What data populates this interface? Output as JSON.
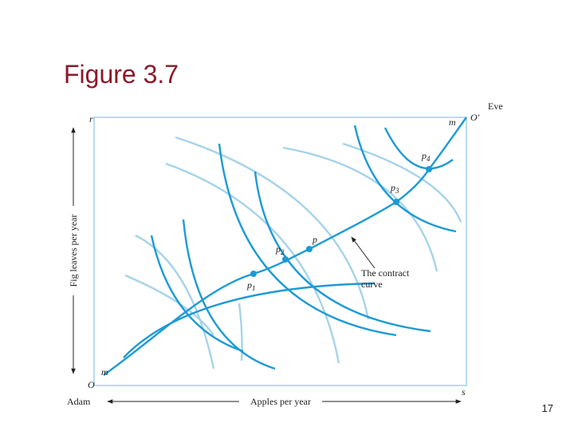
{
  "title": "Figure 3.7",
  "box": {
    "top_left": "r",
    "top_right_label": "m",
    "top_right_origin": "O′",
    "owner_top": "Eve",
    "bottom_left_origin": "O",
    "bottom_left_label": "m",
    "bottom_right": "s",
    "owner_bottom": "Adam"
  },
  "axes": {
    "x_label": "Apples per year",
    "y_label": "Fig leaves per year"
  },
  "points": [
    {
      "base": "p",
      "sub": "1"
    },
    {
      "base": "p",
      "sub": "2"
    },
    {
      "base": "p"
    },
    {
      "base": "p",
      "sub": "3"
    },
    {
      "base": "p",
      "sub": "4"
    }
  ],
  "annotation": [
    "The contract",
    "curve"
  ],
  "page_number": "17"
}
